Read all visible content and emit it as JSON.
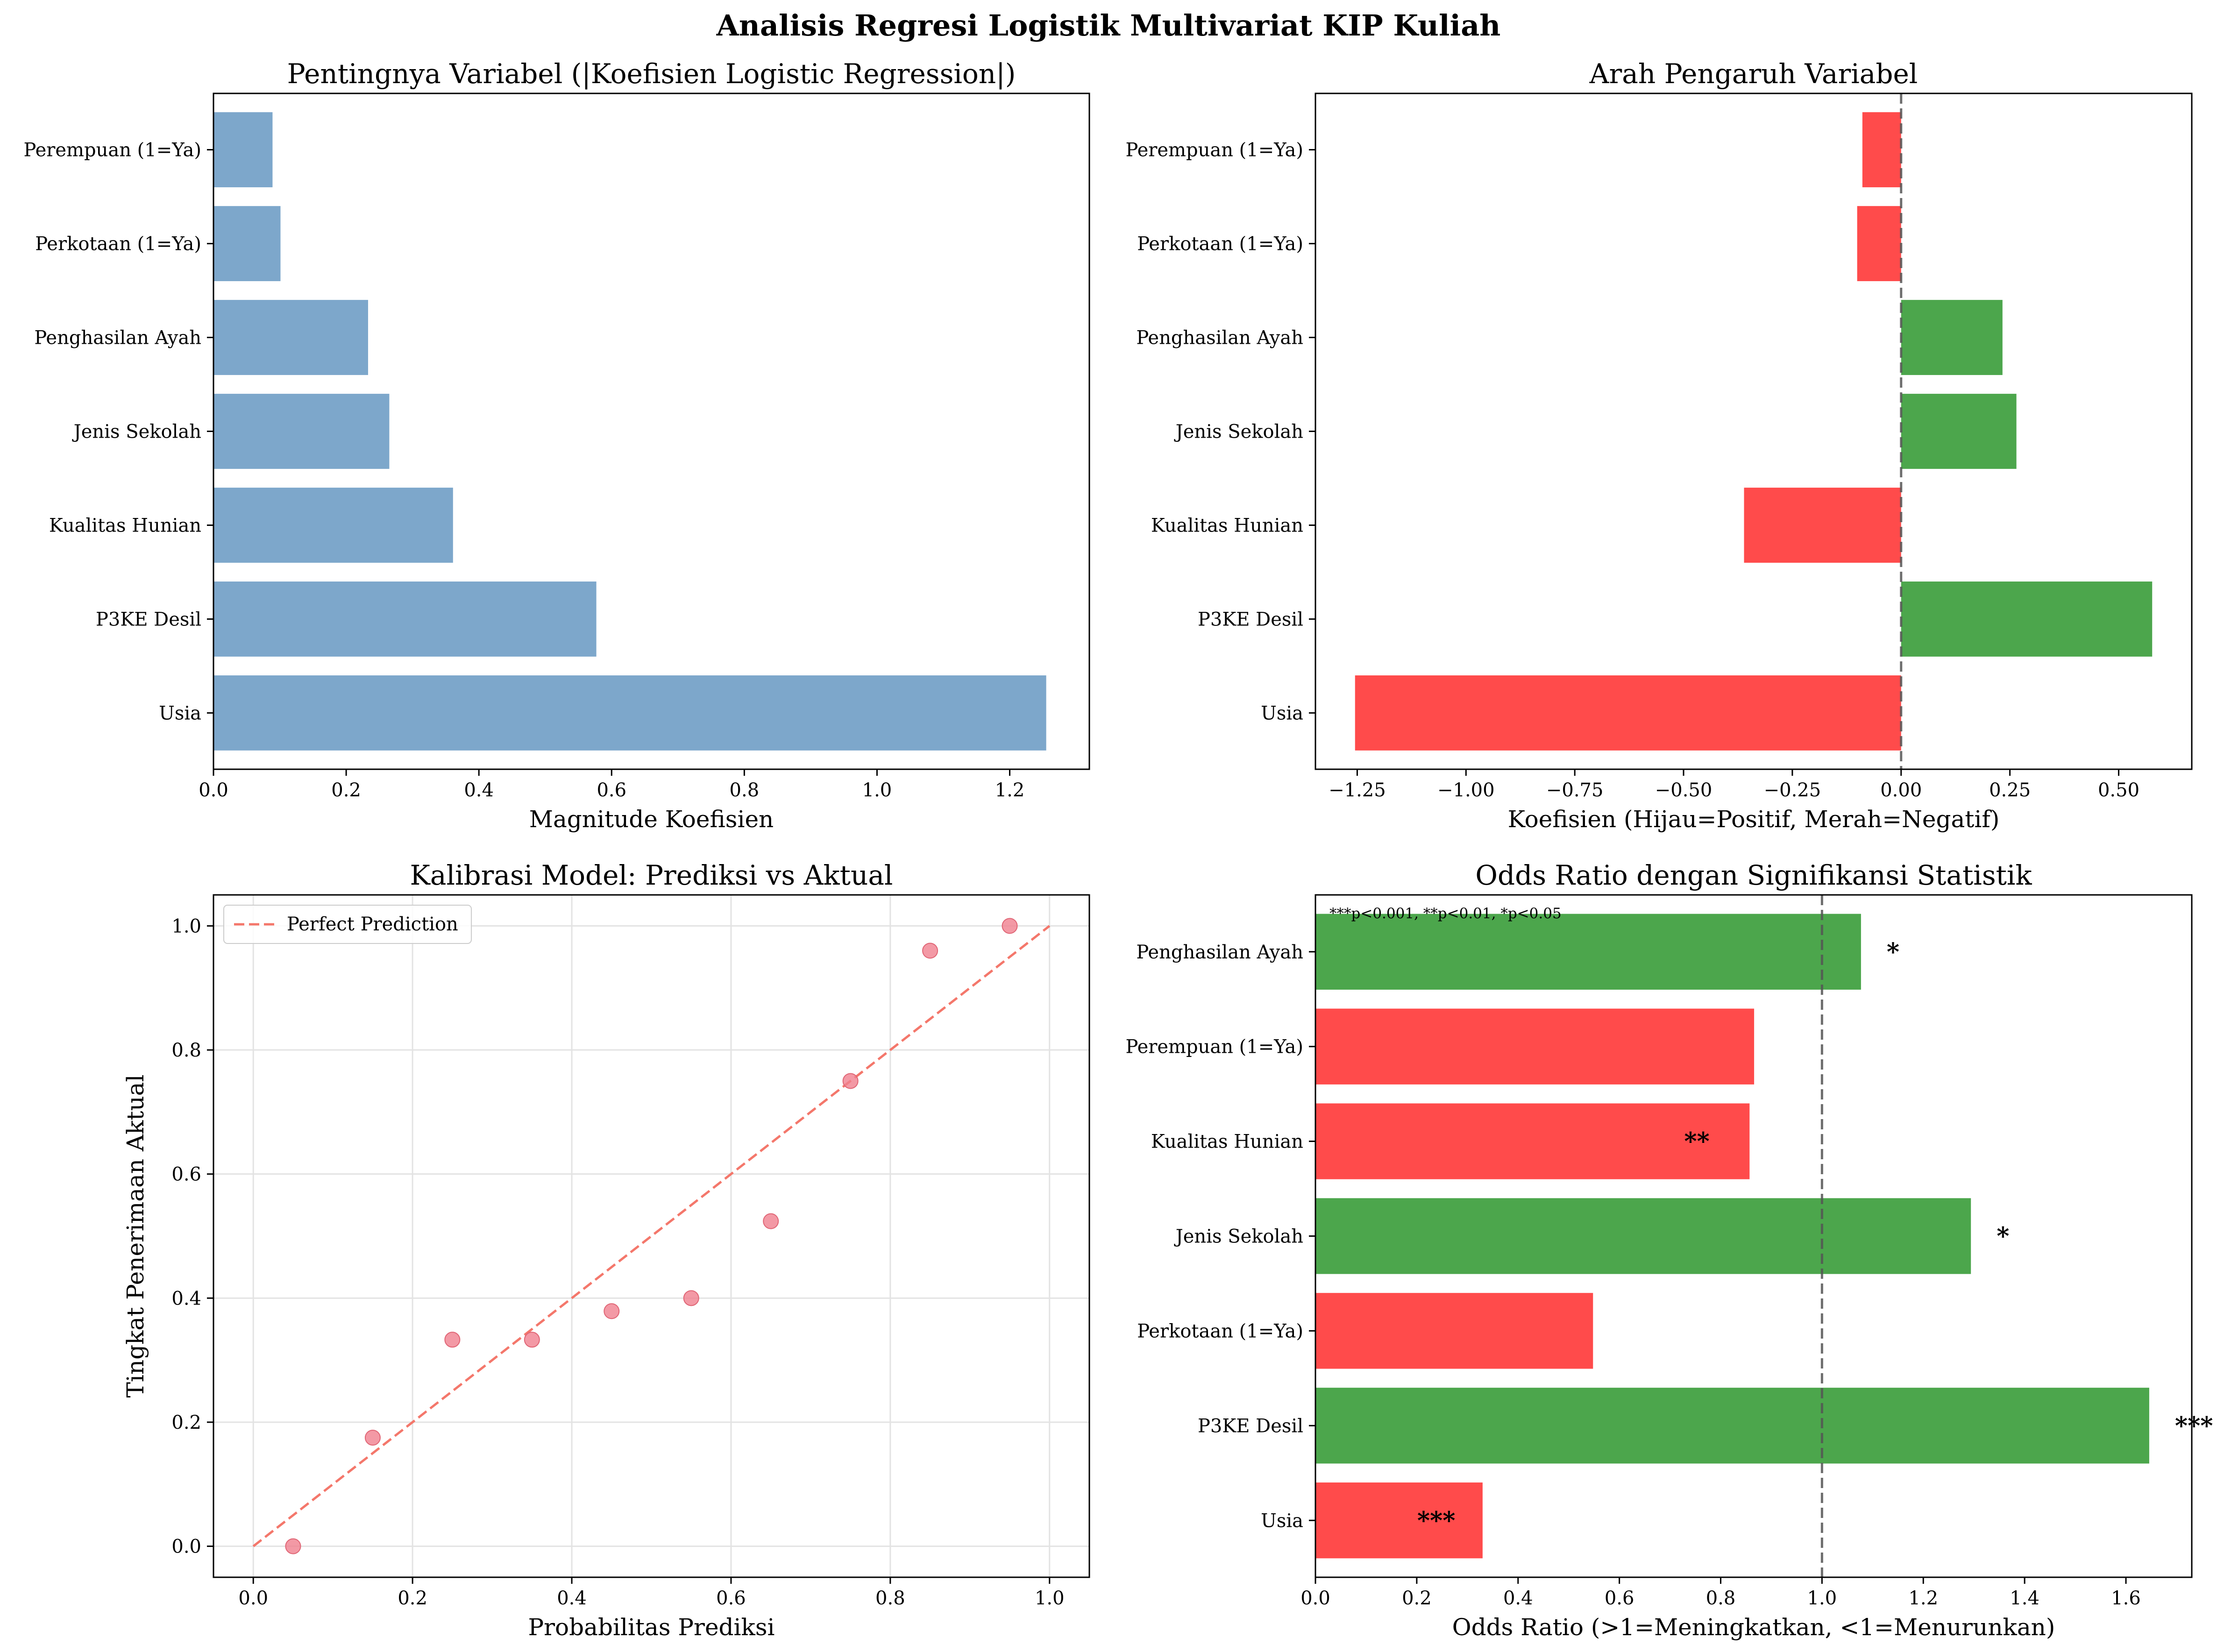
{
  "figure": {
    "title": "Analisis Regresi Logistik Multivariat KIP Kuliah"
  },
  "colors": {
    "importance_bar": "#7da7cb",
    "positive": "#4ca64c",
    "negative": "#ff4b4b",
    "scatter_point": "#f07f8f",
    "perfect_line": "#f4776b",
    "reference_line": "#555555",
    "grid": "#e3e3e3"
  },
  "chart_data": [
    {
      "id": "importance",
      "type": "bar",
      "orientation": "horizontal",
      "title": "Pentingnya Variabel (|Koefisien Logistic Regression|)",
      "xlabel": "Magnitude Koefisien",
      "categories": [
        "Usia",
        "P3KE Desil",
        "Kualitas Hunian",
        "Jenis Sekolah",
        "Penghasilan Ayah",
        "Perkotaan (1=Ya)",
        "Perempuan (1=Ya)"
      ],
      "values": [
        1.255,
        0.577,
        0.361,
        0.265,
        0.233,
        0.101,
        0.089
      ],
      "xlim": [
        0,
        1.32
      ],
      "xticks": [
        0.0,
        0.2,
        0.4,
        0.6,
        0.8,
        1.0,
        1.2
      ],
      "xtick_labels": [
        "0.0",
        "0.2",
        "0.4",
        "0.6",
        "0.8",
        "1.0",
        "1.2"
      ],
      "grid": false
    },
    {
      "id": "direction",
      "type": "bar",
      "orientation": "horizontal",
      "title": "Arah Pengaruh Variabel",
      "xlabel": "Koefisien (Hijau=Positif, Merah=Negatif)",
      "categories": [
        "Usia",
        "P3KE Desil",
        "Kualitas Hunian",
        "Jenis Sekolah",
        "Penghasilan Ayah",
        "Perkotaan (1=Ya)",
        "Perempuan (1=Ya)"
      ],
      "values": [
        -1.255,
        0.577,
        -0.361,
        0.265,
        0.233,
        -0.101,
        -0.089
      ],
      "xlim": [
        -1.346,
        0.668
      ],
      "xticks": [
        -1.25,
        -1.0,
        -0.75,
        -0.5,
        -0.25,
        0.0,
        0.25,
        0.5
      ],
      "xtick_labels": [
        "−1.25",
        "−1.00",
        "−0.75",
        "−0.50",
        "−0.25",
        "0.00",
        "0.25",
        "0.50"
      ],
      "reference_line": 0,
      "grid": false
    },
    {
      "id": "calibration",
      "type": "scatter",
      "title": "Kalibrasi Model: Prediksi vs Aktual",
      "xlabel": "Probabilitas Prediksi",
      "ylabel": "Tingkat Penerimaan Aktual",
      "x": [
        0.05,
        0.15,
        0.25,
        0.35,
        0.45,
        0.55,
        0.65,
        0.75,
        0.85,
        0.95
      ],
      "y": [
        0.0,
        0.175,
        0.333,
        0.333,
        0.379,
        0.4,
        0.524,
        0.75,
        0.96,
        1.0
      ],
      "perfect_line": {
        "name": "Perfect Prediction",
        "x": [
          0,
          1
        ],
        "y": [
          0,
          1
        ]
      },
      "xlim": [
        -0.05,
        1.05
      ],
      "ylim": [
        -0.05,
        1.05
      ],
      "xticks": [
        0.0,
        0.2,
        0.4,
        0.6,
        0.8,
        1.0
      ],
      "xtick_labels": [
        "0.0",
        "0.2",
        "0.4",
        "0.6",
        "0.8",
        "1.0"
      ],
      "yticks": [
        0.0,
        0.2,
        0.4,
        0.6,
        0.8,
        1.0
      ],
      "ytick_labels": [
        "0.0",
        "0.2",
        "0.4",
        "0.6",
        "0.8",
        "1.0"
      ],
      "legend": "upper-left",
      "grid": true
    },
    {
      "id": "odds",
      "type": "bar",
      "orientation": "horizontal",
      "title": "Odds Ratio dengan Signifikansi Statistik",
      "xlabel": "Odds Ratio (>1=Meningkatkan, <1=Menurunkan)",
      "categories": [
        "Usia",
        "P3KE Desil",
        "Perkotaan (1=Ya)",
        "Jenis Sekolah",
        "Kualitas Hunian",
        "Perempuan (1=Ya)",
        "Penghasilan Ayah"
      ],
      "values": [
        0.33,
        1.646,
        0.548,
        1.294,
        0.857,
        0.866,
        1.077
      ],
      "significance": [
        "***",
        "***",
        "",
        "*",
        "**",
        "",
        "*"
      ],
      "xlim": [
        0,
        1.73
      ],
      "xticks": [
        0.0,
        0.2,
        0.4,
        0.6,
        0.8,
        1.0,
        1.2,
        1.4,
        1.6
      ],
      "xtick_labels": [
        "0.0",
        "0.2",
        "0.4",
        "0.6",
        "0.8",
        "1.0",
        "1.2",
        "1.4",
        "1.6"
      ],
      "reference_line": 1,
      "note": "***p<0.001, **p<0.01, *p<0.05",
      "grid": false
    }
  ]
}
